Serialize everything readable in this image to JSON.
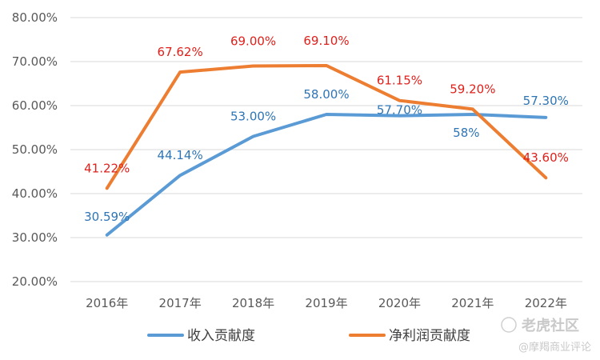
{
  "chart_data": {
    "type": "line",
    "categories": [
      "2016年",
      "2017年",
      "2018年",
      "2019年",
      "2020年",
      "2021年",
      "2022年"
    ],
    "ylim": [
      20,
      80
    ],
    "yticks": [
      "20.00%",
      "30.00%",
      "40.00%",
      "50.00%",
      "60.00%",
      "70.00%",
      "80.00%"
    ],
    "grid": true,
    "legend_position": "bottom",
    "series": [
      {
        "name": "收入贡献度",
        "color": "#5b9bd5",
        "label_color": "#2e75b6",
        "values": [
          30.59,
          44.14,
          53.0,
          58.0,
          57.7,
          58.0,
          57.3
        ],
        "labels": [
          "30.59%",
          "44.14%",
          "53.00%",
          "58.00%",
          "57.70%",
          "58%",
          "57.30%"
        ]
      },
      {
        "name": "净利润贡献度",
        "color": "#ed7d31",
        "label_color": "#e0201b",
        "values": [
          41.22,
          67.62,
          69.0,
          69.1,
          61.15,
          59.2,
          43.6
        ],
        "labels": [
          "41.22%",
          "67.62%",
          "69.00%",
          "69.10%",
          "61.15%",
          "59.20%",
          "43.60%"
        ]
      }
    ]
  },
  "watermark": {
    "brand": "老虎社区",
    "sub": "@摩羯商业评论",
    "icon": "tiger-paw-icon"
  }
}
